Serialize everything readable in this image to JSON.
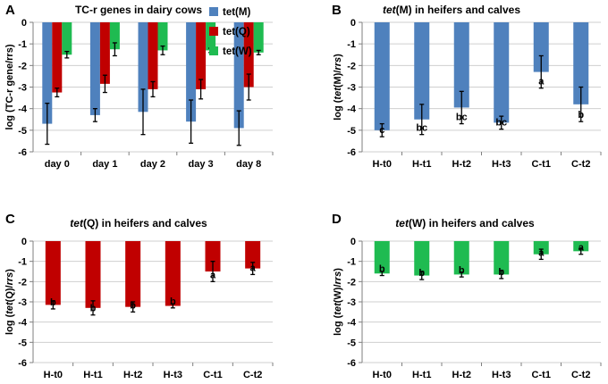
{
  "chart_data": [
    {
      "panel": "A",
      "type": "bar",
      "title": "TC-r genes in dairy cows",
      "ylabel": "log (TC-r gene/rrs)",
      "ylim": [
        -6,
        0
      ],
      "yticks": [
        "-6",
        "-5",
        "-4",
        "-3",
        "-2",
        "-1",
        "0"
      ],
      "categories": [
        "day 0",
        "day 1",
        "day 2",
        "day 3",
        "day 8"
      ],
      "series": [
        {
          "name": "tet(M)",
          "color": "#4f81bd",
          "values": [
            -4.7,
            -4.3,
            -4.15,
            -4.6,
            -4.9
          ],
          "errors": [
            0.95,
            0.3,
            1.05,
            1.0,
            0.8
          ]
        },
        {
          "name": "tet(Q)",
          "color": "#c00000",
          "values": [
            -3.25,
            -2.85,
            -3.1,
            -3.1,
            -3.0
          ],
          "errors": [
            0.2,
            0.4,
            0.35,
            0.45,
            0.6
          ]
        },
        {
          "name": "tet(W)",
          "color": "#1fbb51",
          "values": [
            -1.5,
            -1.25,
            -1.3,
            -1.3,
            -1.4
          ],
          "errors": [
            0.15,
            0.3,
            0.2,
            0.1,
            0.1
          ]
        }
      ],
      "legend": {
        "position": "top-right",
        "entries": [
          "tet(M)",
          "tet(Q)",
          "tet(W)"
        ]
      }
    },
    {
      "panel": "B",
      "type": "bar",
      "title_parts": [
        "tet",
        "(M) in heifers and calves"
      ],
      "ylabel_parts": [
        "log (",
        "tet",
        "(M)/",
        "rrs",
        ")"
      ],
      "ylim": [
        -6,
        0
      ],
      "yticks": [
        "-6",
        "-5",
        "-4",
        "-3",
        "-2",
        "-1",
        "0"
      ],
      "categories": [
        "H-t0",
        "H-t1",
        "H-t2",
        "H-t3",
        "C-t1",
        "C-t2"
      ],
      "color": "#4f81bd",
      "values": [
        -5.0,
        -4.5,
        -3.95,
        -4.65,
        -2.3,
        -3.8
      ],
      "errors": [
        0.3,
        0.7,
        0.75,
        0.3,
        0.75,
        0.8
      ],
      "labels": [
        "c",
        "bc",
        "bc",
        "bc",
        "a",
        "b"
      ]
    },
    {
      "panel": "C",
      "type": "bar",
      "title_parts": [
        "tet",
        "(Q) in heifers and calves"
      ],
      "ylabel_parts": [
        "log (",
        "tet",
        "(Q)/",
        "rrs",
        ")"
      ],
      "ylim": [
        -6,
        0
      ],
      "yticks": [
        "-6",
        "-5",
        "-4",
        "-3",
        "-2",
        "-1",
        "0"
      ],
      "categories": [
        "H-t0",
        "H-t1",
        "H-t2",
        "H-t3",
        "C-t1",
        "C-t2"
      ],
      "color": "#c00000",
      "values": [
        -3.15,
        -3.3,
        -3.25,
        -3.2,
        -1.5,
        -1.35
      ],
      "errors": [
        0.2,
        0.35,
        0.25,
        0.1,
        0.5,
        0.3
      ],
      "labels": [
        "b",
        "b",
        "b",
        "b",
        "a",
        "a"
      ]
    },
    {
      "panel": "D",
      "type": "bar",
      "title_parts": [
        "tet",
        "(W) in heifers and calves"
      ],
      "ylabel_parts": [
        "log (",
        "tet",
        "(W)/",
        "rrs",
        ")"
      ],
      "ylim": [
        -6,
        0
      ],
      "yticks": [
        "-6",
        "-5",
        "-4",
        "-3",
        "-2",
        "-1",
        "0"
      ],
      "categories": [
        "H-t0",
        "H-t1",
        "H-t2",
        "H-t3",
        "C-t1",
        "C-t2"
      ],
      "color": "#1fbb51",
      "values": [
        -1.6,
        -1.7,
        -1.65,
        -1.65,
        -0.65,
        -0.5
      ],
      "errors": [
        0.1,
        0.2,
        0.12,
        0.2,
        0.25,
        0.15
      ],
      "labels": [
        "b",
        "b",
        "b",
        "b",
        "a",
        "a"
      ]
    }
  ]
}
